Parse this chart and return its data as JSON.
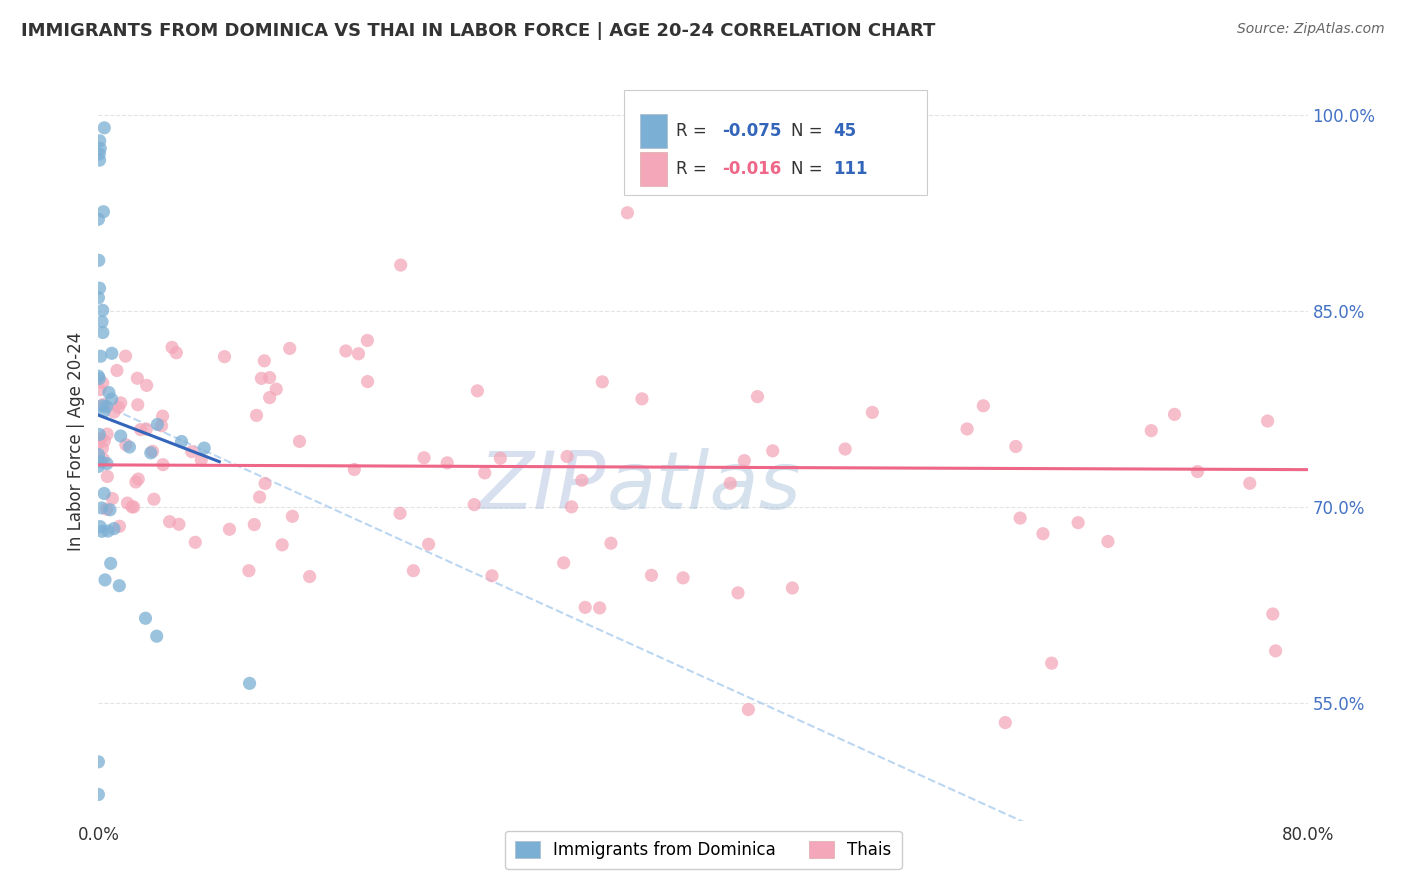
{
  "title": "IMMIGRANTS FROM DOMINICA VS THAI IN LABOR FORCE | AGE 20-24 CORRELATION CHART",
  "source_text": "Source: ZipAtlas.com",
  "ylabel": "In Labor Force | Age 20-24",
  "xlim": [
    0.0,
    0.8
  ],
  "ylim": [
    0.46,
    1.04
  ],
  "yticks": [
    0.55,
    0.7,
    0.85,
    1.0
  ],
  "ytick_labels": [
    "55.0%",
    "70.0%",
    "85.0%",
    "100.0%"
  ],
  "xtick_left_label": "0.0%",
  "xtick_right_label": "80.0%",
  "dominica_color": "#7BAFD4",
  "thai_color": "#F4A7B9",
  "dominica_line_color": "#3366BB",
  "thai_line_color": "#EE6688",
  "dashed_line_color": "#AACCEE",
  "dominica_R": -0.075,
  "dominica_N": 45,
  "thai_R": -0.016,
  "thai_N": 111,
  "watermark_zip": "ZIP",
  "watermark_atlas": "atlas",
  "bg_color": "#FFFFFF",
  "grid_color": "#DDDDDD",
  "ytick_color": "#4472C4",
  "title_color": "#333333",
  "source_color": "#666666"
}
